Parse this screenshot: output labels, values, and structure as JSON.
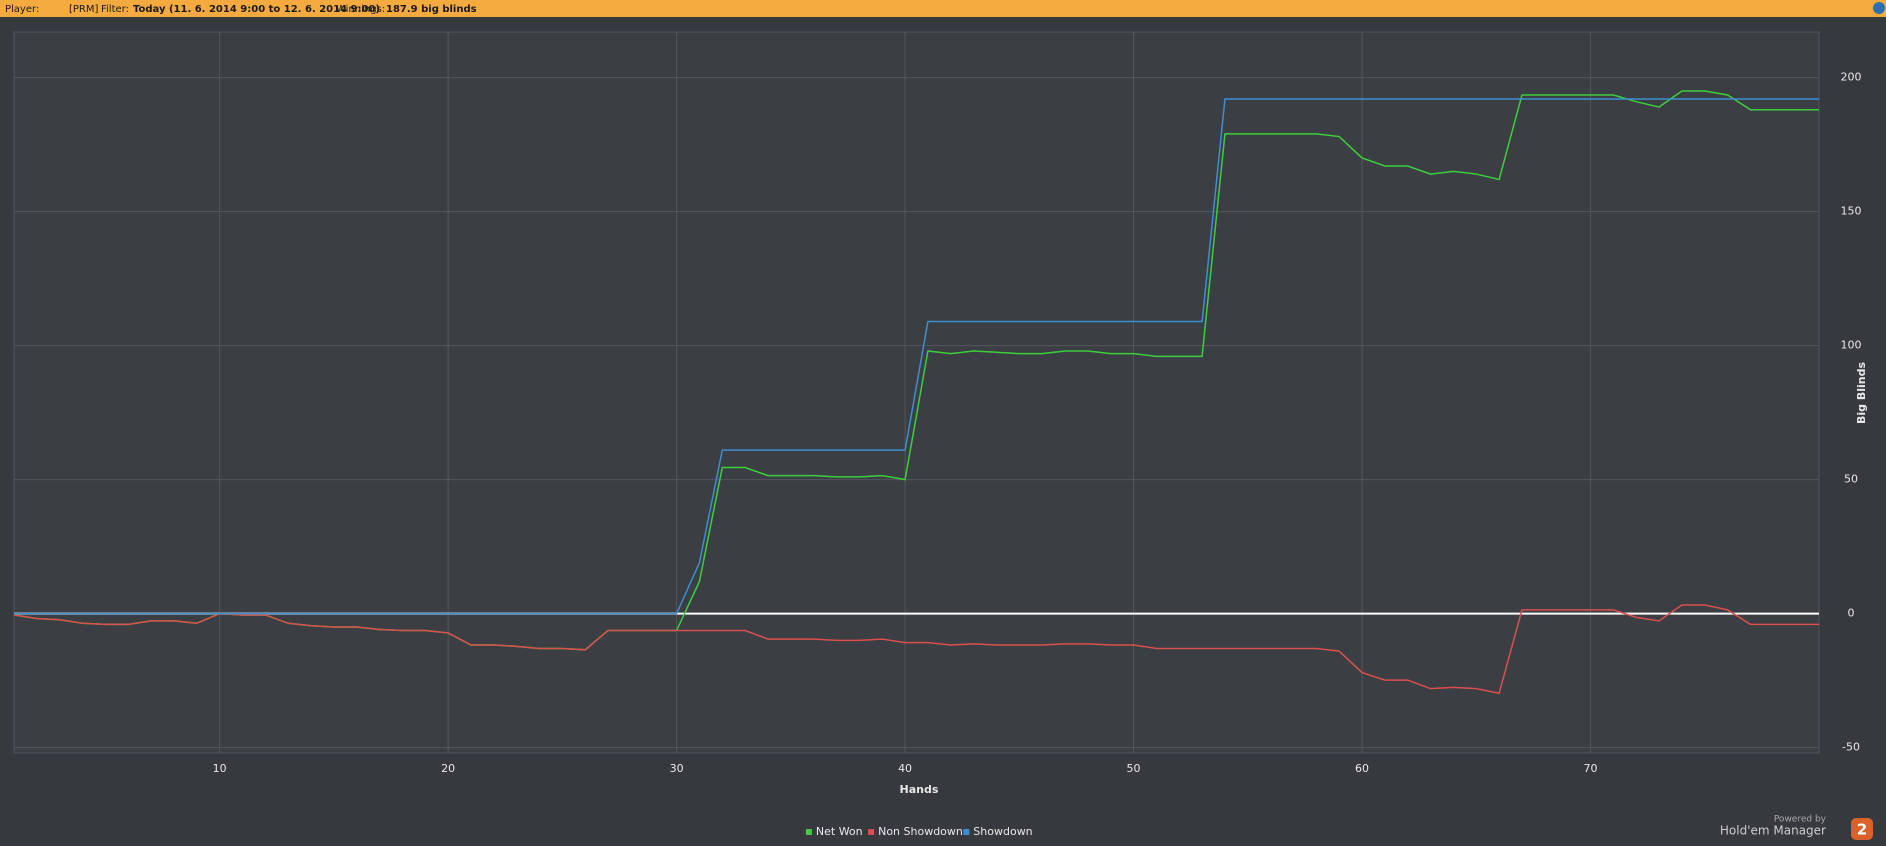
{
  "header": {
    "player_label": "Player:",
    "player": "[PRM]",
    "filter_label": "Filter:",
    "filter": "Today (11. 6. 2014 9:00 to 12. 6. 2014 9:00)",
    "winnings_label": "Winnings:",
    "winnings": "187.9 big blinds"
  },
  "branding": {
    "powered_by": "Powered by",
    "product": "Hold'em Manager",
    "logo": "2"
  },
  "chart_data": {
    "type": "line",
    "x_label": "Hands",
    "y_label": "Big Blinds",
    "x": [
      1,
      2,
      3,
      4,
      5,
      6,
      7,
      8,
      9,
      10,
      11,
      12,
      13,
      14,
      15,
      16,
      17,
      18,
      19,
      20,
      21,
      22,
      23,
      24,
      25,
      26,
      27,
      28,
      29,
      30,
      31,
      32,
      33,
      34,
      35,
      36,
      37,
      38,
      39,
      40,
      41,
      42,
      43,
      44,
      45,
      46,
      47,
      48,
      49,
      50,
      51,
      52,
      53,
      54,
      55,
      56,
      57,
      58,
      59,
      60,
      61,
      62,
      63,
      64,
      65,
      66,
      67,
      68,
      69,
      70,
      71,
      72,
      73,
      74,
      75,
      76,
      77,
      78,
      79,
      80
    ],
    "series": [
      {
        "name": "Net Won",
        "color": "#3ccf3c",
        "values": [
          -0.5,
          -1.8,
          -2.3,
          -3.6,
          -4,
          -4,
          -2.7,
          -2.7,
          -3.6,
          0,
          -0.5,
          -0.5,
          -3.6,
          -4.5,
          -5,
          -5,
          -5.9,
          -6.3,
          -6.3,
          -7.2,
          -11.7,
          -11.7,
          -12.2,
          -13,
          -13,
          -13.5,
          -6.3,
          -6.3,
          -6.3,
          -6.3,
          12,
          54.5,
          54.5,
          51.5,
          51.5,
          51.5,
          51,
          51,
          51.5,
          50,
          98,
          97,
          98,
          97.5,
          97,
          97,
          98,
          98,
          97,
          97,
          96,
          96,
          96,
          179,
          179,
          179,
          179,
          179,
          178,
          170,
          167,
          167,
          164,
          165,
          164,
          162,
          193.5,
          193.5,
          193.5,
          193.5,
          193.5,
          191,
          189,
          195,
          195,
          193.5,
          188,
          188,
          188,
          188
        ]
      },
      {
        "name": "Non Showdown",
        "color": "#d9504f",
        "values": [
          -0.5,
          -1.8,
          -2.3,
          -3.6,
          -4,
          -4,
          -2.7,
          -2.7,
          -3.6,
          0,
          -0.5,
          -0.5,
          -3.6,
          -4.5,
          -5,
          -5,
          -5.9,
          -6.3,
          -6.3,
          -7.2,
          -11.7,
          -11.7,
          -12.2,
          -13,
          -13,
          -13.5,
          -6.3,
          -6.3,
          -6.3,
          -6.3,
          -6.3,
          -6.3,
          -6.3,
          -9.5,
          -9.5,
          -9.5,
          -10,
          -10,
          -9.5,
          -10.8,
          -10.8,
          -11.7,
          -11.3,
          -11.7,
          -11.7,
          -11.7,
          -11.3,
          -11.3,
          -11.7,
          -11.7,
          -13,
          -13,
          -13,
          -13,
          -13,
          -13,
          -13,
          -13,
          -14,
          -22,
          -24.8,
          -24.8,
          -28,
          -27.5,
          -28,
          -29.7,
          1.4,
          1.4,
          1.4,
          1.4,
          1.4,
          -1.4,
          -2.7,
          3.2,
          3.2,
          1.4,
          -4,
          -4,
          -4,
          -4
        ]
      },
      {
        "name": "Showdown",
        "color": "#3d8fd1",
        "values": [
          0,
          0,
          0,
          0,
          0,
          0,
          0,
          0,
          0,
          0,
          0,
          0,
          0,
          0,
          0,
          0,
          0,
          0,
          0,
          0,
          0,
          0,
          0,
          0,
          0,
          0,
          0,
          0,
          0,
          0,
          19,
          61,
          61,
          61,
          61,
          61,
          61,
          61,
          61,
          61,
          109,
          109,
          109,
          109,
          109,
          109,
          109,
          109,
          109,
          109,
          109,
          109,
          109,
          192,
          192,
          192,
          192,
          192,
          192,
          192,
          192,
          192,
          192,
          192,
          192,
          192,
          192,
          192,
          192,
          192,
          192,
          192,
          192,
          192,
          192,
          192,
          192,
          192,
          192,
          192
        ]
      }
    ],
    "xlim": [
      1,
      80
    ],
    "xticks": [
      10,
      20,
      30,
      40,
      50,
      60,
      70
    ],
    "ylim": [
      -52,
      217
    ],
    "yticks": [
      -50,
      0,
      50,
      100,
      150,
      200
    ],
    "grid": true,
    "legend": "bottom"
  }
}
